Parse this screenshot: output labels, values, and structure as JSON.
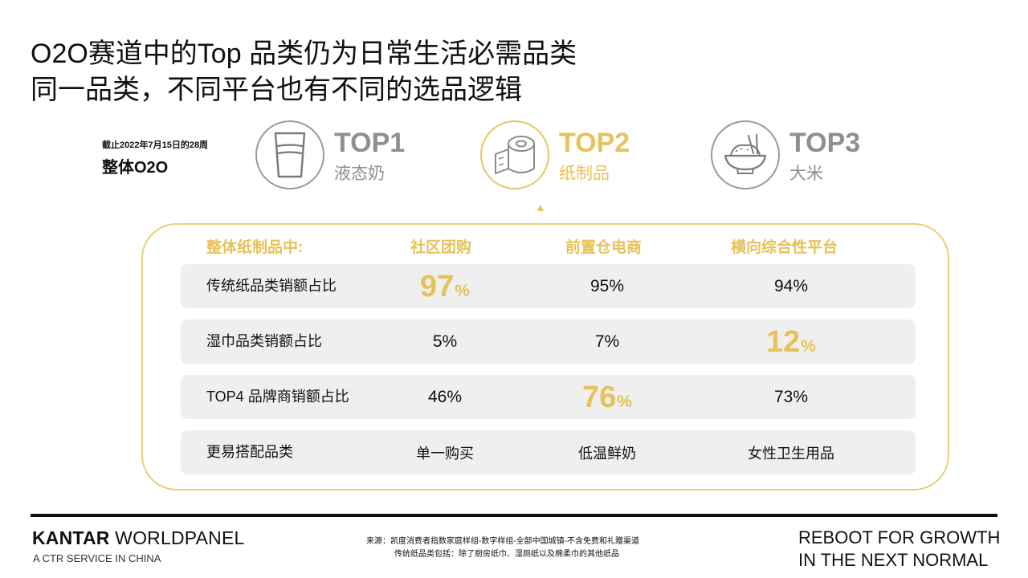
{
  "title": {
    "line1": "O2O赛道中的Top 品类仍为日常生活必需品类",
    "line2": "同一品类，不同平台也有不同的选品逻辑"
  },
  "date_note": "截止2022年7月15日的28周",
  "scope": "整体O2O",
  "tops": [
    {
      "rank": "TOP1",
      "name": "液态奶",
      "icon": "milk-glass-icon"
    },
    {
      "rank": "TOP2",
      "name": "纸制品",
      "icon": "toilet-paper-icon"
    },
    {
      "rank": "TOP3",
      "name": "大米",
      "icon": "rice-bowl-icon"
    }
  ],
  "table": {
    "headers": [
      "整体纸制品中:",
      "社区团购",
      "前置仓电商",
      "横向综合性平台"
    ],
    "rows": [
      {
        "label": "传统纸品类销额占比",
        "values": [
          "97%",
          "95%",
          "94%"
        ],
        "highlight": 0,
        "hl_num": "97",
        "hl_unit": "%"
      },
      {
        "label": "湿巾品类销额占比",
        "values": [
          "5%",
          "7%",
          "12%"
        ],
        "highlight": 2,
        "hl_num": "12",
        "hl_unit": "%"
      },
      {
        "label": "TOP4 品牌商销额占比",
        "values": [
          "46%",
          "76%",
          "73%"
        ],
        "highlight": 1,
        "hl_num": "76",
        "hl_unit": "%"
      },
      {
        "label": "更易搭配品类",
        "values": [
          "单一购买",
          "低温鲜奶",
          "女性卫生用品"
        ],
        "highlight": -1
      }
    ]
  },
  "footer": {
    "brand_bold": "KANTAR",
    "brand_rest": " WORLDPANEL",
    "brand_sub": "A CTR SERVICE IN CHINA",
    "source_line1": "来源：凯度消费者指数家庭样组-数字样组-全部中国城镇-不含免费和礼赠渠道",
    "source_line2": "传统纸品类包括：除了厨房纸巾、湿厕纸以及棉柔巾的其他纸品",
    "tagline1": "REBOOT FOR GROWTH",
    "tagline2": "IN THE NEXT NORMAL"
  },
  "colors": {
    "accent": "#e6c25a",
    "muted": "#8f8f8f",
    "row_bg": "#efefef"
  }
}
